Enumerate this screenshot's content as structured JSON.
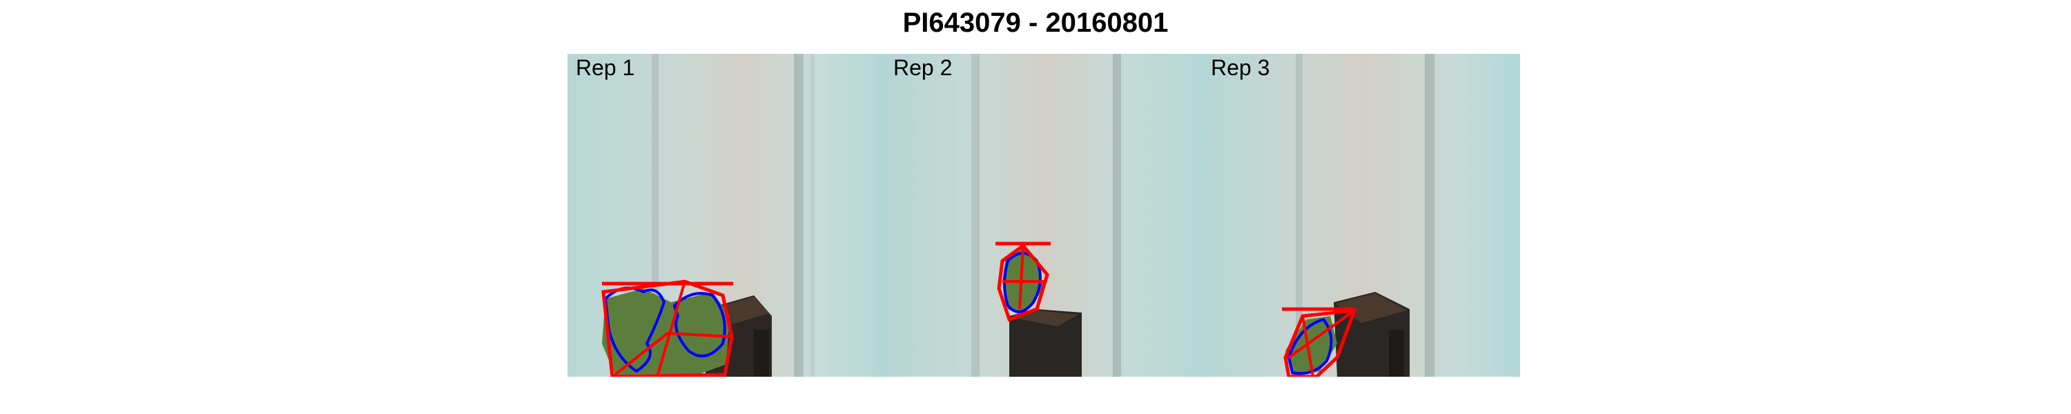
{
  "title": "PI643079 - 20160801",
  "panels": [
    {
      "label": "Rep 1"
    },
    {
      "label": "Rep 2"
    },
    {
      "label": "Rep 3"
    }
  ],
  "colors": {
    "outline": "#ff0000",
    "contour": "#0000ff",
    "plant": "#5a7f3a",
    "background": "#c8dcdc",
    "pot": "#2a2624"
  }
}
